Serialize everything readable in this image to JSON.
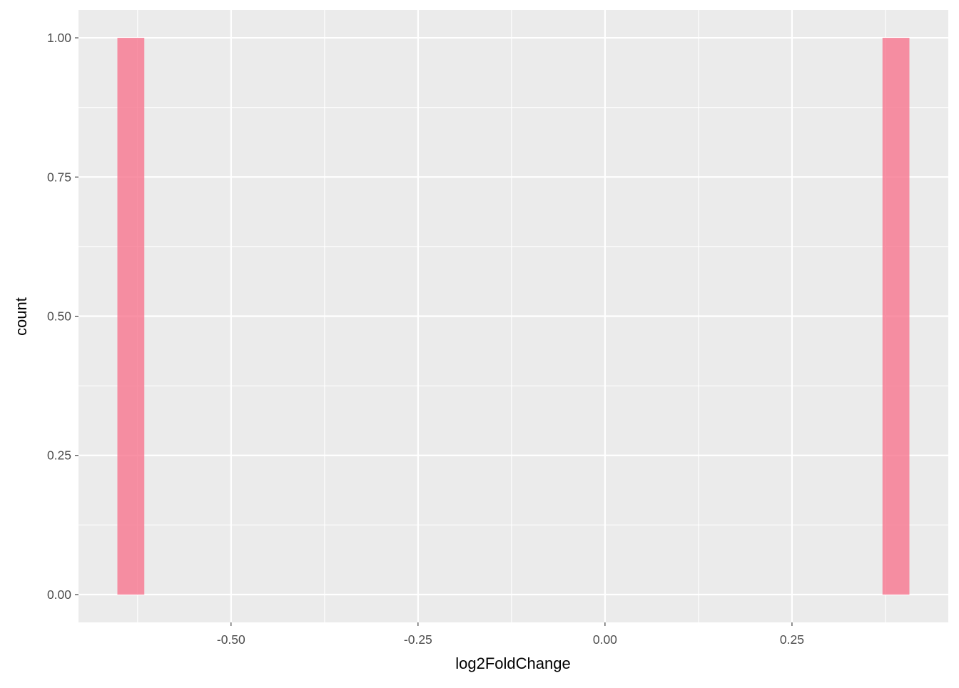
{
  "chart_data": {
    "type": "bar",
    "subtype": "histogram",
    "title": "",
    "xlabel": "log2FoldChange",
    "ylabel": "count",
    "xlim": [
      -0.704,
      0.459
    ],
    "ylim": [
      -0.05,
      1.05
    ],
    "x_ticks": [
      -0.5,
      -0.25,
      0.0,
      0.25
    ],
    "x_tick_labels": [
      "-0.50",
      "-0.25",
      "0.00",
      "0.25"
    ],
    "y_ticks": [
      0,
      0.25,
      0.5,
      0.75,
      1.0
    ],
    "y_tick_labels": [
      "0.00",
      "0.25",
      "0.50",
      "0.75",
      "1.00"
    ],
    "grid": true,
    "bins": [
      {
        "xmin": -0.652,
        "xmax": -0.616,
        "count": 1
      },
      {
        "xmin": 0.371,
        "xmax": 0.407,
        "count": 1
      }
    ],
    "colors": {
      "bar": "#F8768F",
      "panel": "#EBEBEB",
      "grid": "#FFFFFF"
    }
  }
}
